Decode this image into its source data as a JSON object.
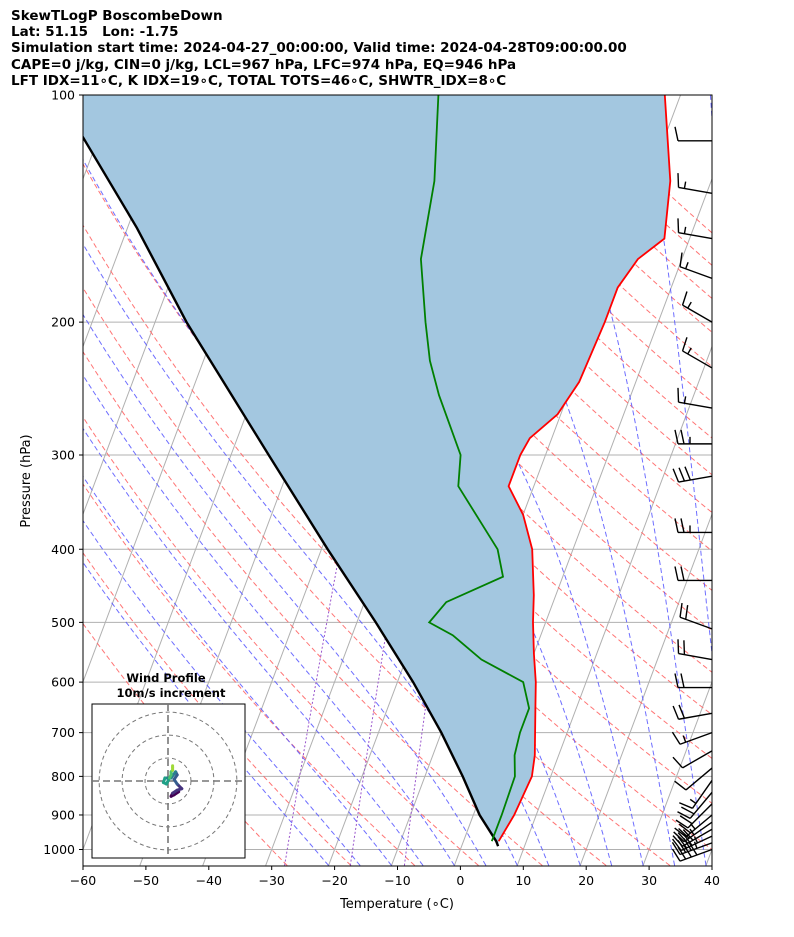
{
  "header": {
    "lines": [
      "SkewTLogP BoscombeDown",
      "Lat: 51.15   Lon: -1.75",
      "Simulation start time: 2024-04-27_00:00:00, Valid time: 2024-04-28T09:00:00.00",
      "CAPE=0 j/kg, CIN=0 j/kg, LCL=967 hPa, LFC=974 hPa, EQ=946 hPa",
      "LFT IDX=11∘C, K IDX=19∘C, TOTAL TOTS=46∘C, SHWTR_IDX=8∘C"
    ]
  },
  "chart_data": {
    "type": "skewt-logp",
    "xlabel": "Temperature (∘C)",
    "ylabel": "Pressure (hPa)",
    "xlim": [
      -60,
      40
    ],
    "ylim": [
      1050,
      100
    ],
    "x_ticks": [
      -60,
      -50,
      -40,
      -30,
      -20,
      -10,
      0,
      10,
      20,
      30,
      40
    ],
    "x_tick_labels": [
      "−60",
      "−50",
      "−40",
      "−30",
      "−20",
      "−10",
      "0",
      "10",
      "20",
      "30",
      "40"
    ],
    "y_ticks": [
      1000,
      900,
      800,
      700,
      600,
      500,
      400,
      300,
      200,
      100
    ],
    "y_tick_labels": [
      "1000",
      "900",
      "800",
      "700",
      "600",
      "500",
      "400",
      "300",
      "200",
      "100"
    ],
    "grid": true,
    "skew_deg_per_log_decade": 45,
    "colors": {
      "temperature": "#ff0000",
      "dewpoint": "#008000",
      "parcel": "#000000",
      "shading": "#a3c7e0",
      "dry_adiabat": "#ff6666",
      "moist_adiabat": "#5555ff",
      "mixing_ratio": "#9955cc",
      "isotherm": "#b0b0b0",
      "isobar": "#b0b0b0",
      "barb": "#000000"
    },
    "temperature_profile": [
      {
        "p": 975,
        "t": 5.6
      },
      {
        "p": 900,
        "t": 6.5
      },
      {
        "p": 800,
        "t": 7.0
      },
      {
        "p": 750,
        "t": 6.2
      },
      {
        "p": 650,
        "t": 3.5
      },
      {
        "p": 600,
        "t": 2.0
      },
      {
        "p": 550,
        "t": 0.0
      },
      {
        "p": 500,
        "t": -2.0
      },
      {
        "p": 460,
        "t": -3.5
      },
      {
        "p": 400,
        "t": -6.5
      },
      {
        "p": 360,
        "t": -10.0
      },
      {
        "p": 330,
        "t": -14.0
      },
      {
        "p": 300,
        "t": -14.0
      },
      {
        "p": 285,
        "t": -13.5
      },
      {
        "p": 265,
        "t": -10.5
      },
      {
        "p": 240,
        "t": -9.0
      },
      {
        "p": 200,
        "t": -8.5
      },
      {
        "p": 180,
        "t": -8.5
      },
      {
        "p": 165,
        "t": -7.0
      },
      {
        "p": 155,
        "t": -4.0
      },
      {
        "p": 130,
        "t": -6.5
      },
      {
        "p": 100,
        "t": -12.5
      }
    ],
    "dewpoint_profile": [
      {
        "p": 975,
        "t": 4.5
      },
      {
        "p": 900,
        "t": 4.5
      },
      {
        "p": 800,
        "t": 4.3
      },
      {
        "p": 750,
        "t": 3.0
      },
      {
        "p": 700,
        "t": 2.5
      },
      {
        "p": 650,
        "t": 2.5
      },
      {
        "p": 600,
        "t": 0.0
      },
      {
        "p": 560,
        "t": -8.0
      },
      {
        "p": 520,
        "t": -14.0
      },
      {
        "p": 500,
        "t": -18.5
      },
      {
        "p": 470,
        "t": -17.0
      },
      {
        "p": 435,
        "t": -9.5
      },
      {
        "p": 400,
        "t": -12.0
      },
      {
        "p": 330,
        "t": -22.0
      },
      {
        "p": 300,
        "t": -23.5
      },
      {
        "p": 250,
        "t": -30.5
      },
      {
        "p": 225,
        "t": -34.0
      },
      {
        "p": 200,
        "t": -37.0
      },
      {
        "p": 165,
        "t": -41.5
      },
      {
        "p": 130,
        "t": -44.0
      },
      {
        "p": 100,
        "t": -48.5
      }
    ],
    "parcel_profile": [
      {
        "p": 990,
        "t": 5.8
      },
      {
        "p": 975,
        "t": 5.2
      },
      {
        "p": 900,
        "t": 1.0
      },
      {
        "p": 800,
        "t": -4.0
      },
      {
        "p": 700,
        "t": -10.0
      },
      {
        "p": 600,
        "t": -17.5
      },
      {
        "p": 500,
        "t": -27.0
      },
      {
        "p": 400,
        "t": -39.0
      },
      {
        "p": 300,
        "t": -54.0
      },
      {
        "p": 200,
        "t": -75.0
      },
      {
        "p": 150,
        "t": -88.5
      },
      {
        "p": 100,
        "t": -109.0
      }
    ],
    "wind_barbs": [
      {
        "p": 1000,
        "speed_kt": 40,
        "dir_deg": 250
      },
      {
        "p": 980,
        "speed_kt": 35,
        "dir_deg": 250
      },
      {
        "p": 960,
        "speed_kt": 35,
        "dir_deg": 245
      },
      {
        "p": 940,
        "speed_kt": 30,
        "dir_deg": 240
      },
      {
        "p": 920,
        "speed_kt": 25,
        "dir_deg": 235
      },
      {
        "p": 900,
        "speed_kt": 25,
        "dir_deg": 230
      },
      {
        "p": 870,
        "speed_kt": 20,
        "dir_deg": 225
      },
      {
        "p": 840,
        "speed_kt": 20,
        "dir_deg": 220
      },
      {
        "p": 810,
        "speed_kt": 15,
        "dir_deg": 215
      },
      {
        "p": 780,
        "speed_kt": 10,
        "dir_deg": 230
      },
      {
        "p": 740,
        "speed_kt": 10,
        "dir_deg": 240
      },
      {
        "p": 700,
        "speed_kt": 15,
        "dir_deg": 250
      },
      {
        "p": 660,
        "speed_kt": 20,
        "dir_deg": 260
      },
      {
        "p": 610,
        "speed_kt": 20,
        "dir_deg": 270
      },
      {
        "p": 560,
        "speed_kt": 20,
        "dir_deg": 280
      },
      {
        "p": 510,
        "speed_kt": 20,
        "dir_deg": 290
      },
      {
        "p": 440,
        "speed_kt": 20,
        "dir_deg": 270
      },
      {
        "p": 380,
        "speed_kt": 25,
        "dir_deg": 270
      },
      {
        "p": 320,
        "speed_kt": 30,
        "dir_deg": 260
      },
      {
        "p": 290,
        "speed_kt": 25,
        "dir_deg": 270
      },
      {
        "p": 260,
        "speed_kt": 15,
        "dir_deg": 280
      },
      {
        "p": 230,
        "speed_kt": 15,
        "dir_deg": 300
      },
      {
        "p": 200,
        "speed_kt": 15,
        "dir_deg": 300
      },
      {
        "p": 175,
        "speed_kt": 15,
        "dir_deg": 290
      },
      {
        "p": 155,
        "speed_kt": 15,
        "dir_deg": 280
      },
      {
        "p": 135,
        "speed_kt": 15,
        "dir_deg": 280
      },
      {
        "p": 115,
        "speed_kt": 10,
        "dir_deg": 270
      }
    ],
    "hodograph": {
      "title": "Wind Profile",
      "subtitle": "10m/s increment",
      "ring_step_ms": 10,
      "rings": 3,
      "range_ms": 25,
      "points_uv": [
        [
          3.5,
          -3.5
        ],
        [
          2.0,
          -4.5
        ],
        [
          1.0,
          -5.0
        ],
        [
          1.5,
          -4.0
        ],
        [
          3.0,
          -3.0
        ],
        [
          4.5,
          -2.5
        ],
        [
          3.0,
          -1.0
        ],
        [
          2.0,
          0.5
        ],
        [
          3.0,
          2.0
        ],
        [
          2.5,
          3.0
        ],
        [
          1.0,
          1.0
        ],
        [
          -1.0,
          1.0
        ],
        [
          -1.5,
          -0.5
        ],
        [
          -0.5,
          -1.0
        ],
        [
          0.5,
          1.0
        ],
        [
          1.0,
          2.0
        ],
        [
          1.0,
          3.0
        ],
        [
          1.5,
          3.5
        ],
        [
          1.5,
          4.5
        ],
        [
          1.5,
          5.0
        ]
      ],
      "segment_colors": [
        "#440154",
        "#46337e",
        "#365c8d",
        "#277f8e",
        "#1fa187",
        "#4ac16d",
        "#a0da39"
      ]
    }
  }
}
